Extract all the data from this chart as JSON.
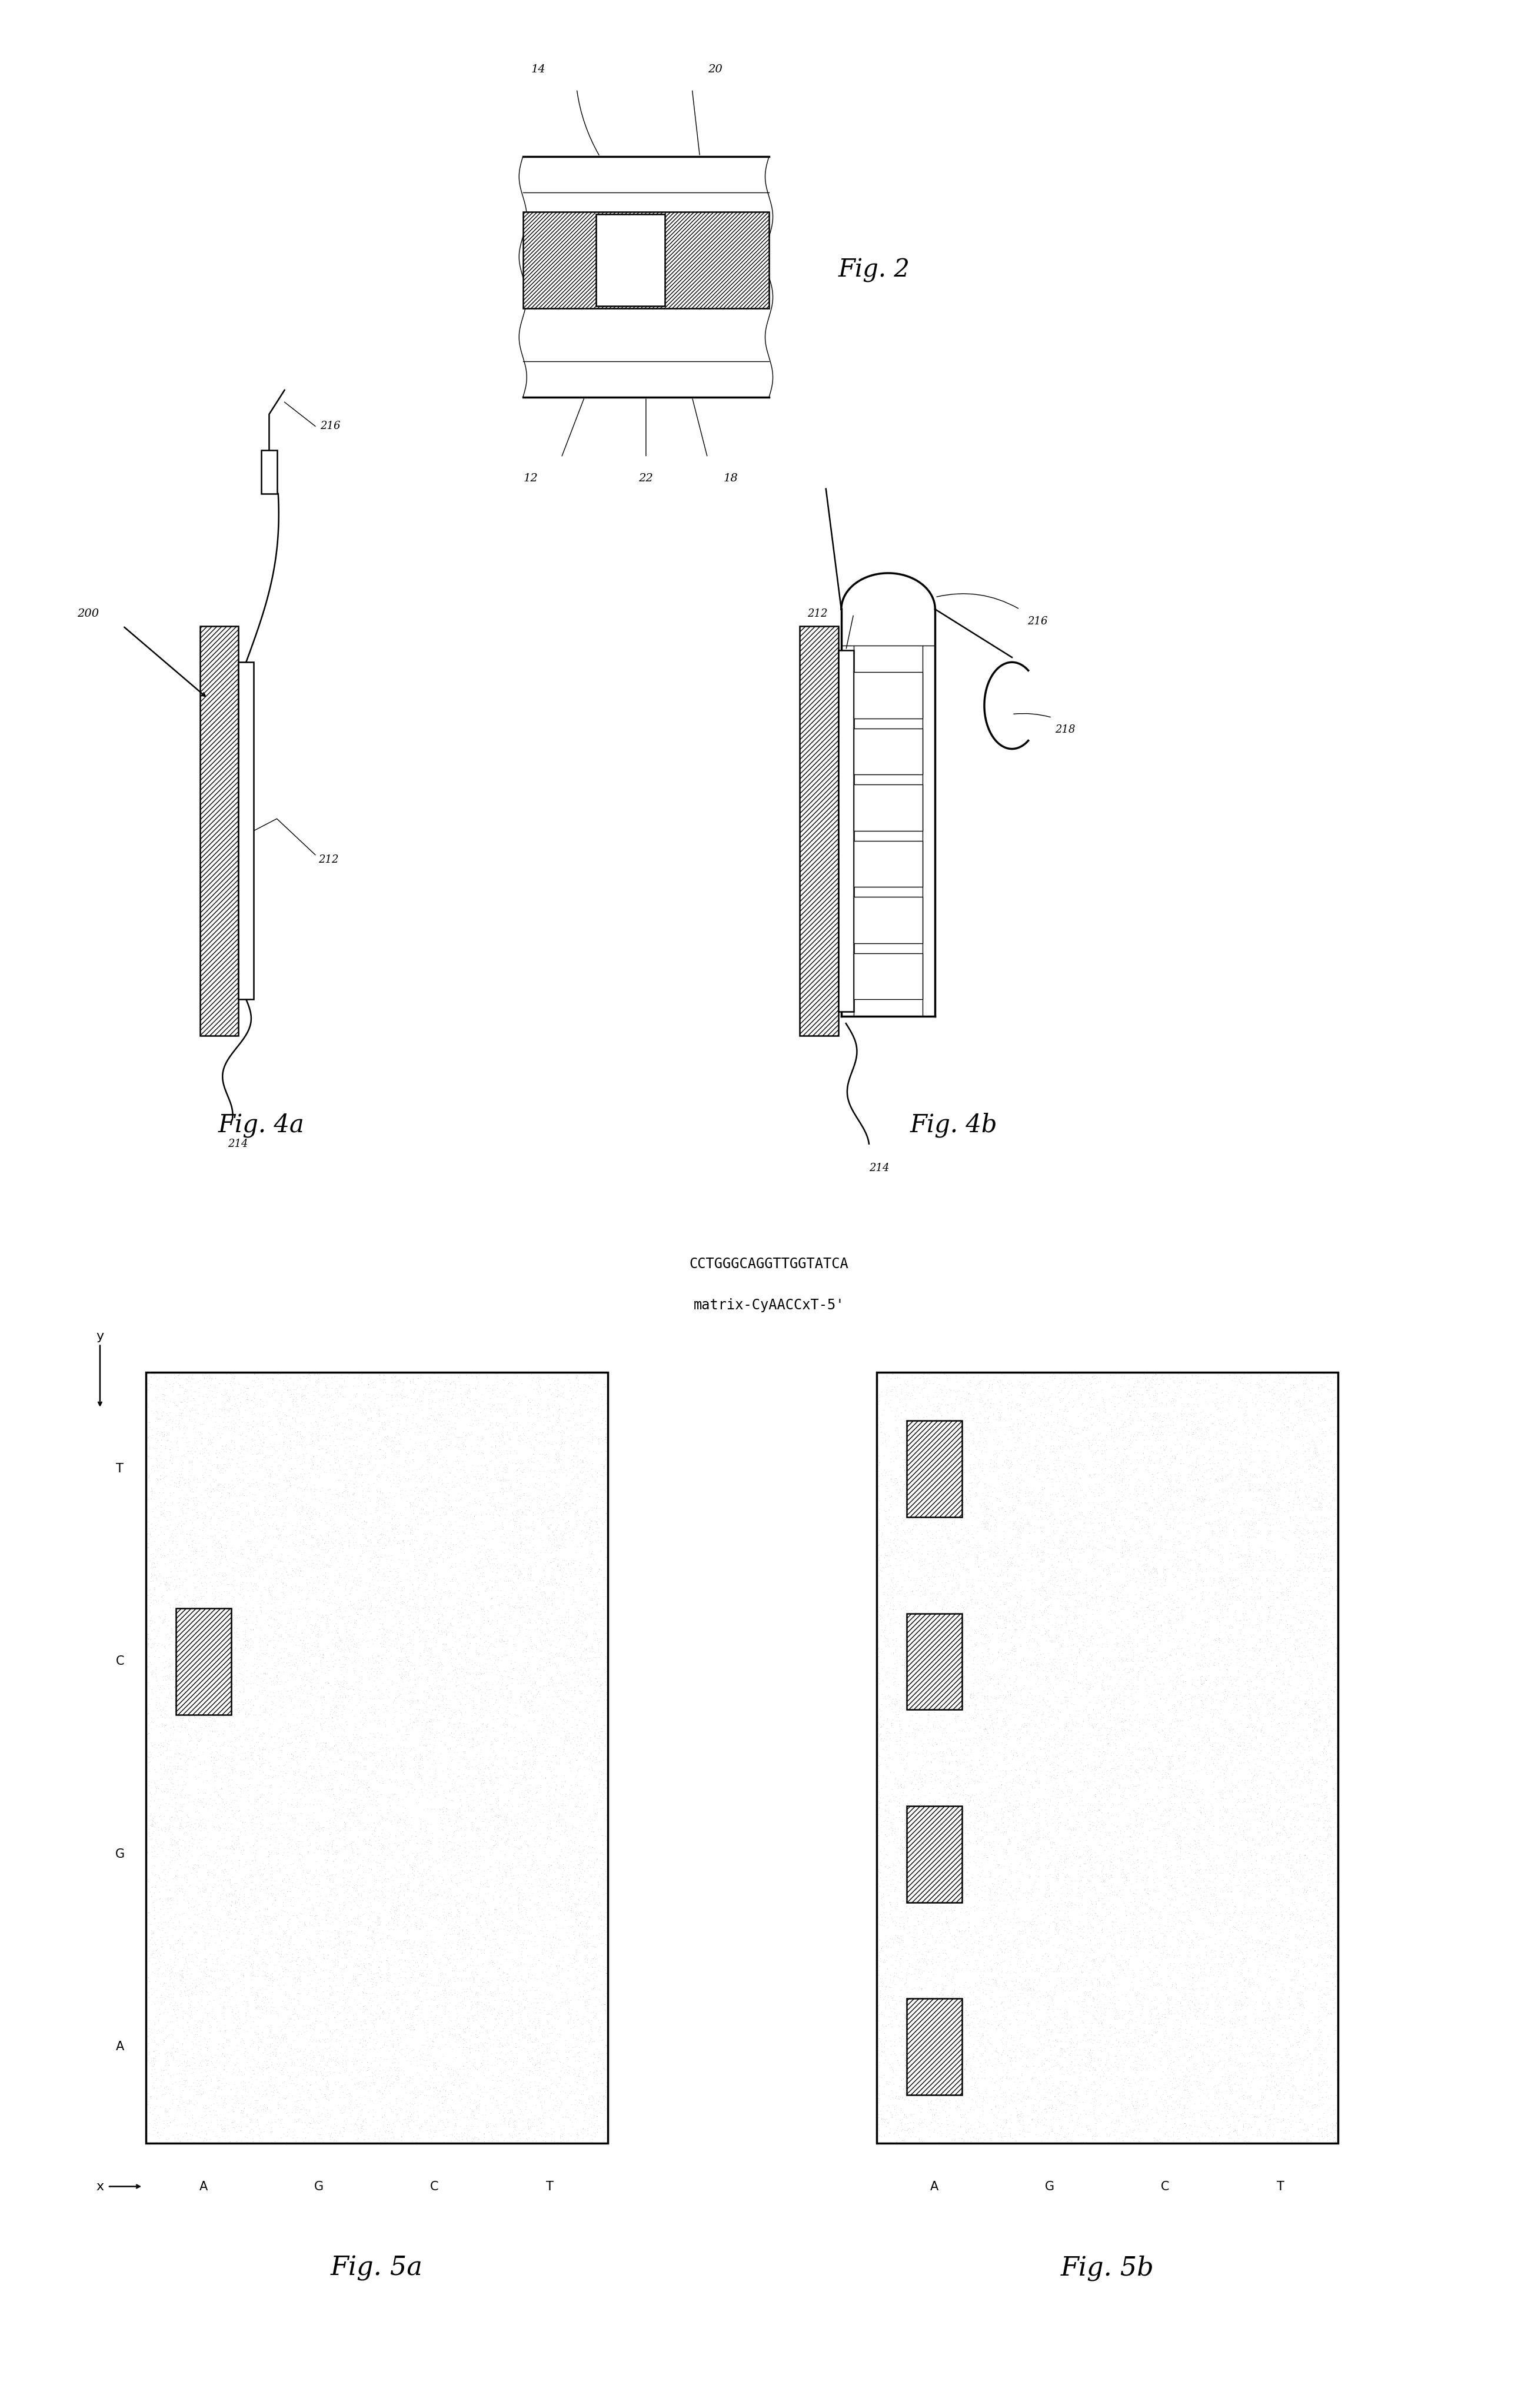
{
  "bg_color": "#ffffff",
  "fig_width": 26.14,
  "fig_height": 40.92,
  "fig2_label": "Fig. 2",
  "fig4a_label": "Fig. 4a",
  "fig4b_label": "Fig. 4b",
  "fig5a_label": "Fig. 5a",
  "fig5b_label": "Fig. 5b",
  "label_200": "200",
  "label_212_4a": "212",
  "label_212_4b": "212",
  "label_214_4a": "214",
  "label_214_4b": "214",
  "label_216_4a": "216",
  "label_216_4b": "216",
  "label_218": "218",
  "label_14": "14",
  "label_20": "20",
  "label_12": "12",
  "label_22": "22",
  "label_18": "18",
  "seq_title": "CCTGGGCAGGTTGGTATCA",
  "seq_subtitle": "matrix-CyAACCxT-5'",
  "grid_labels_x": [
    "A",
    "G",
    "C",
    "T"
  ],
  "grid_labels_y": [
    "T",
    "C",
    "G",
    "A"
  ],
  "x_axis_label": "x",
  "y_axis_label": "y"
}
